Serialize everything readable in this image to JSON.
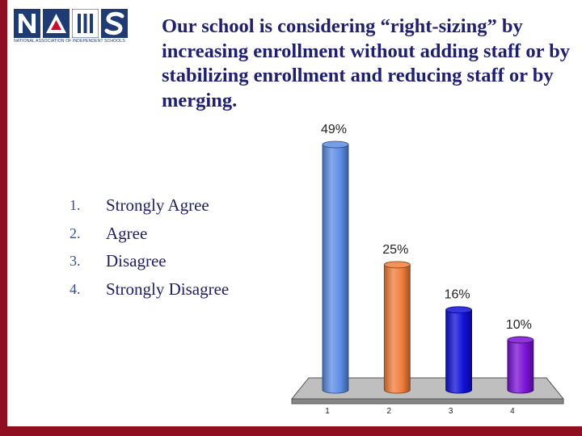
{
  "logo": {
    "letters": [
      "N",
      "A",
      "I",
      "S"
    ],
    "caption": "NATIONAL ASSOCIATION OF INDEPENDENT SCHOOLS"
  },
  "slide": {
    "title": "Our school is considering “right-sizing” by increasing enrollment without adding staff or by stabilizing enrollment and reducing staff or by merging."
  },
  "options": [
    {
      "number": "1.",
      "label": "Strongly Agree"
    },
    {
      "number": "2.",
      "label": "Agree"
    },
    {
      "number": "3.",
      "label": "Disagree"
    },
    {
      "number": "4.",
      "label": "Strongly Disagree"
    }
  ],
  "chart_data": {
    "type": "bar",
    "categories": [
      "1",
      "2",
      "3",
      "4"
    ],
    "values": [
      49,
      25,
      16,
      10
    ],
    "value_labels": [
      "49%",
      "25%",
      "16%",
      "10%"
    ],
    "colors": [
      "#5b8ce6",
      "#f07d3a",
      "#1010d8",
      "#7a12d6"
    ],
    "ylim": [
      0,
      49
    ],
    "style": "3d-cylinder",
    "grid": false,
    "legend": "none"
  },
  "colors": {
    "accent_bar": "#8f0f21",
    "logo_blue": "#1f3b73",
    "title": "#1f1f6f",
    "floor": "#bfbfbf"
  }
}
